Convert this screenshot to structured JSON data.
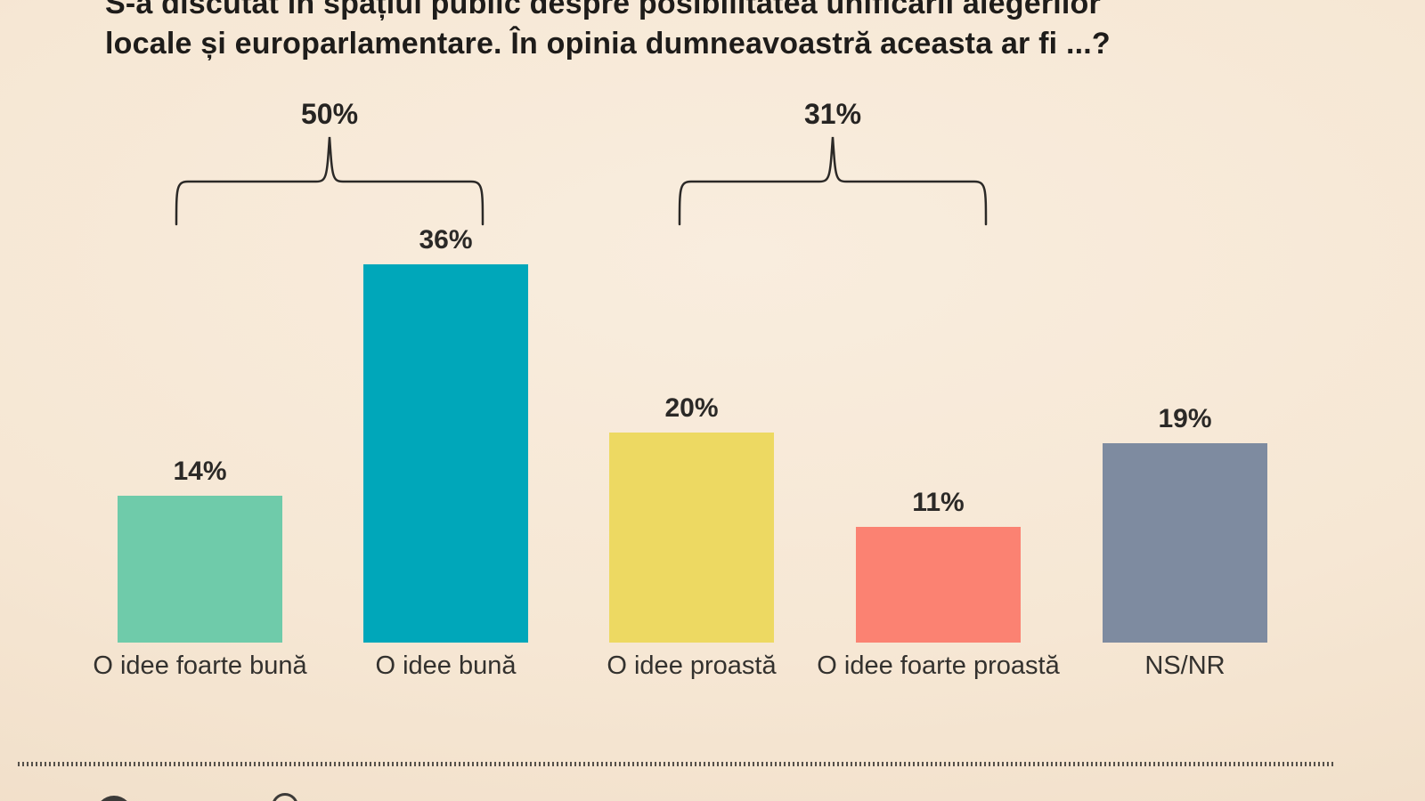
{
  "header": {
    "line1": "S-a discutat în spațiul public despre posibilitatea unificării alegerilor",
    "line2": "locale și europarlamentare. În opinia dumneavoastră aceasta ar fi ...?"
  },
  "chart_data": {
    "type": "bar",
    "title": "S-a discutat în spațiul public despre posibilitatea unificării alegerilor locale și europarlamentare. În opinia dumneavoastră aceasta ar fi ...?",
    "categories": [
      "O idee foarte bună",
      "O idee bună",
      "O idee proastă",
      "O idee foarte proastă",
      "NS/NR"
    ],
    "values": [
      14,
      36,
      20,
      11,
      19
    ],
    "unit": "%",
    "value_labels": [
      "14%",
      "36%",
      "20%",
      "11%",
      "19%"
    ],
    "bar_colors": [
      "#6fcbaa",
      "#00a7ba",
      "#edd962",
      "#fb8272",
      "#7e8ba0"
    ],
    "groups": [
      {
        "label": "50%",
        "value": 50,
        "spans": [
          "O idee foarte bună",
          "O idee bună"
        ]
      },
      {
        "label": "31%",
        "value": 31,
        "spans": [
          "O idee proastă",
          "O idee foarte proastă"
        ]
      }
    ],
    "xlabel": "",
    "ylabel": "",
    "grid": false,
    "legend": "none",
    "background_color": "#f6e7d4",
    "text_color": "#2a2a2a",
    "brace_color": "#2b2927"
  }
}
